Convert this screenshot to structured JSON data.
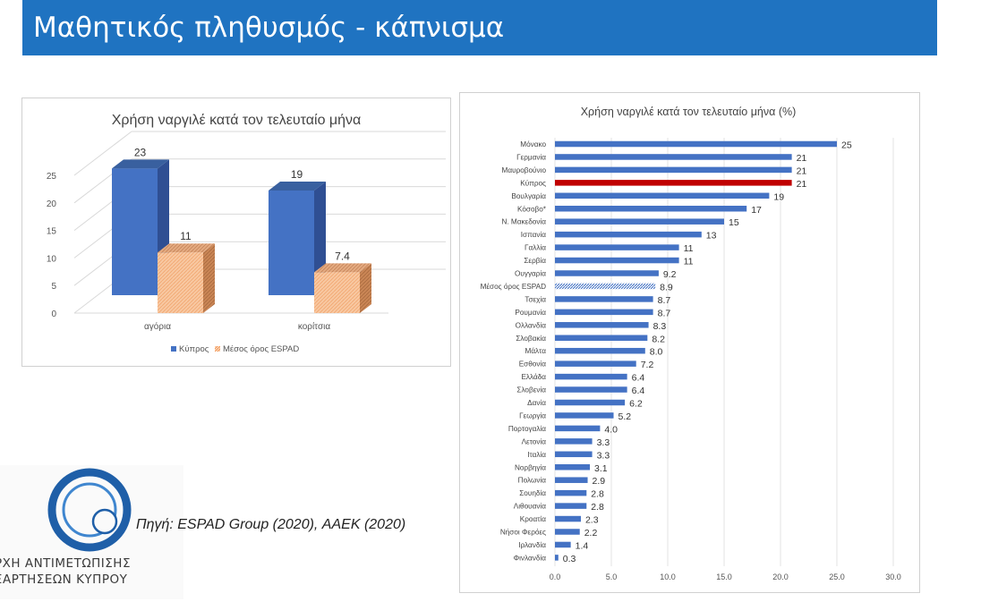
{
  "slide": {
    "title": "Μαθητικός πληθυσμός - κάπνισμα",
    "source": "Πηγή: ESPAD Group (2020), ΑΑΕΚ (2020)",
    "logo_line1": "ΡΧΗ ΑΝΤΙΜΕΤΩΠΙΣΗΣ",
    "logo_line2": "ΞΑΡΤΗΣΕΩΝ ΚΥΠΡΟΥ"
  },
  "colors": {
    "title_bg": "#1f73c1",
    "cyprus_blue": "#4472c4",
    "espad_orange": "#f4b183",
    "highlight_red": "#c00000"
  },
  "chart_data": [
    {
      "type": "bar",
      "title": "Χρήση ναργιλέ κατά τον τελευταίο μήνα",
      "categories": [
        "αγόρια",
        "κορίτσια"
      ],
      "series": [
        {
          "name": "Κύπρος",
          "values": [
            23,
            19
          ]
        },
        {
          "name": "Μέσος όρος ESPAD",
          "values": [
            11,
            7.4
          ]
        }
      ],
      "ylim": [
        0,
        25
      ],
      "yticks": [
        "0",
        "5",
        "10",
        "15",
        "20",
        "25"
      ],
      "legend": "bottom",
      "three_d": true
    },
    {
      "type": "bar",
      "orientation": "horizontal",
      "title": "Χρήση ναργιλέ κατά τον τελευταίο μήνα (%)",
      "categories": [
        "Μόνακο",
        "Γερμανία",
        "Μαυροβούνιο",
        "Κύπρος",
        "Βουλγαρία",
        "Κόσοβο*",
        "Ν. Μακεδονία",
        "Ισπανία",
        "Γαλλία",
        "Σερβία",
        "Ουγγαρία",
        "Μέσος όρος ESPAD",
        "Τσεχία",
        "Ρουμανία",
        "Ολλανδία",
        "Σλοβακία",
        "Μάλτα",
        "Εσθονία",
        "Ελλάδα",
        "Σλοβενία",
        "Δανία",
        "Γεωργία",
        "Πορτογαλία",
        "Λετονία",
        "Ιταλία",
        "Νορβηγία",
        "Πολωνία",
        "Σουηδία",
        "Λιθουανία",
        "Κροατία",
        "Νήσοι Φερόες",
        "Ιρλανδία",
        "Φινλανδία"
      ],
      "values": [
        25,
        21,
        21,
        21,
        19,
        17,
        15,
        13,
        11,
        11,
        9.2,
        8.9,
        8.7,
        8.7,
        8.3,
        8.2,
        8.0,
        7.2,
        6.4,
        6.4,
        6.2,
        5.2,
        4.0,
        3.3,
        3.3,
        3.1,
        2.9,
        2.8,
        2.8,
        2.3,
        2.2,
        1.4,
        0.3
      ],
      "value_labels": [
        "25",
        "21",
        "21",
        "21",
        "19",
        "17",
        "15",
        "13",
        "11",
        "11",
        "9.2",
        "8.9",
        "8.7",
        "8.7",
        "8.3",
        "8.2",
        "8.0",
        "7.2",
        "6.4",
        "6.4",
        "6.2",
        "5.2",
        "4.0",
        "3.3",
        "3.3",
        "3.1",
        "2.9",
        "2.8",
        "2.8",
        "2.3",
        "2.2",
        "1.4",
        "0.3"
      ],
      "highlight": {
        "Κύπρος": "red",
        "Μέσος όρος ESPAD": "hatched"
      },
      "xlim": [
        0,
        30
      ],
      "xticks": [
        "0.0",
        "5.0",
        "10.0",
        "15.0",
        "20.0",
        "25.0",
        "30.0"
      ],
      "grid": true
    }
  ]
}
